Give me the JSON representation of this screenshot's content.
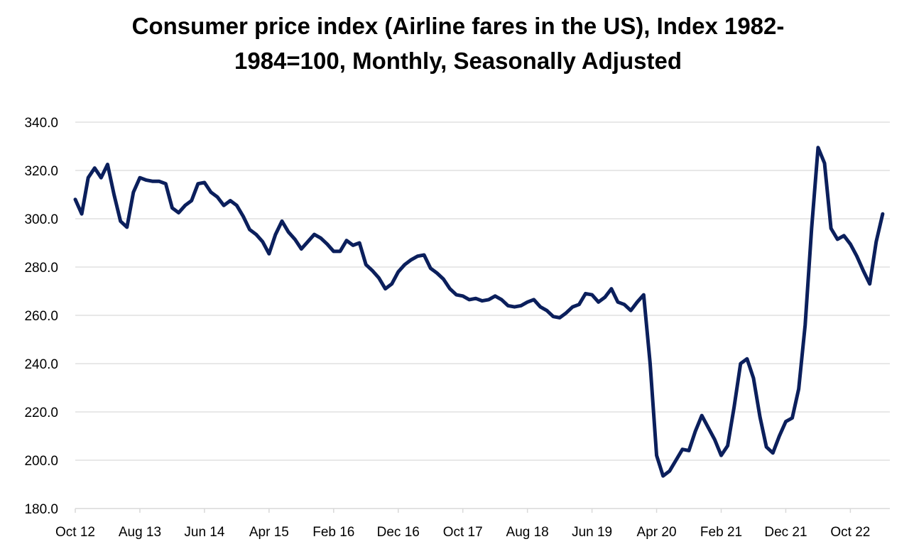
{
  "chart_data": {
    "type": "line",
    "title": "Consumer price index (Airline fares in the US), Index 1982-1984=100, Monthly, Seasonally Adjusted",
    "xlabel": "",
    "ylabel": "",
    "ylim": [
      180,
      340
    ],
    "yticks": [
      "180.0",
      "200.0",
      "220.0",
      "240.0",
      "260.0",
      "280.0",
      "300.0",
      "320.0",
      "340.0"
    ],
    "xtick_labels": [
      "Oct 12",
      "Aug 13",
      "Jun 14",
      "Apr 15",
      "Feb 16",
      "Dec 16",
      "Oct 17",
      "Aug 18",
      "Jun 19",
      "Apr 20",
      "Feb 21",
      "Dec 21",
      "Oct 22"
    ],
    "xtick_every_n_months": 10,
    "grid": true,
    "line_color": "#0b1f5c",
    "series": [
      {
        "values": [
          308,
          302,
          317,
          321,
          317,
          322.5,
          310,
          299,
          296.5,
          311,
          317,
          316,
          315.5,
          315.5,
          314.5,
          304.5,
          302.5,
          305.5,
          307.5,
          314.5,
          315,
          311,
          309,
          305.5,
          307.5,
          305.5,
          301,
          295.5,
          293.5,
          290.5,
          285.5,
          293.5,
          299,
          294.5,
          291.5,
          287.5,
          290.5,
          293.5,
          292,
          289.5,
          286.5,
          286.5,
          291,
          289,
          290,
          281,
          278.5,
          275.5,
          271,
          273,
          278,
          281,
          283,
          284.5,
          285,
          279.5,
          277.5,
          275,
          271,
          268.5,
          268,
          266.5,
          267,
          266,
          266.5,
          268,
          266.5,
          264,
          263.5,
          264,
          265.5,
          266.5,
          263.5,
          262,
          259.5,
          259,
          261,
          263.5,
          264.5,
          269,
          268.5,
          265.5,
          267.5,
          271,
          265.5,
          264.5,
          262,
          265.5,
          268.5,
          240,
          202,
          193.5,
          195.5,
          200,
          204.5,
          204,
          212,
          218.5,
          213.5,
          208.5,
          202,
          206,
          222,
          240,
          242,
          234,
          218,
          205.5,
          203,
          210,
          216,
          217.5,
          229.5,
          256,
          296,
          329.5,
          323,
          296,
          291.5,
          293,
          289.5,
          284.5,
          278.5,
          273,
          290.5,
          302
        ]
      }
    ]
  }
}
